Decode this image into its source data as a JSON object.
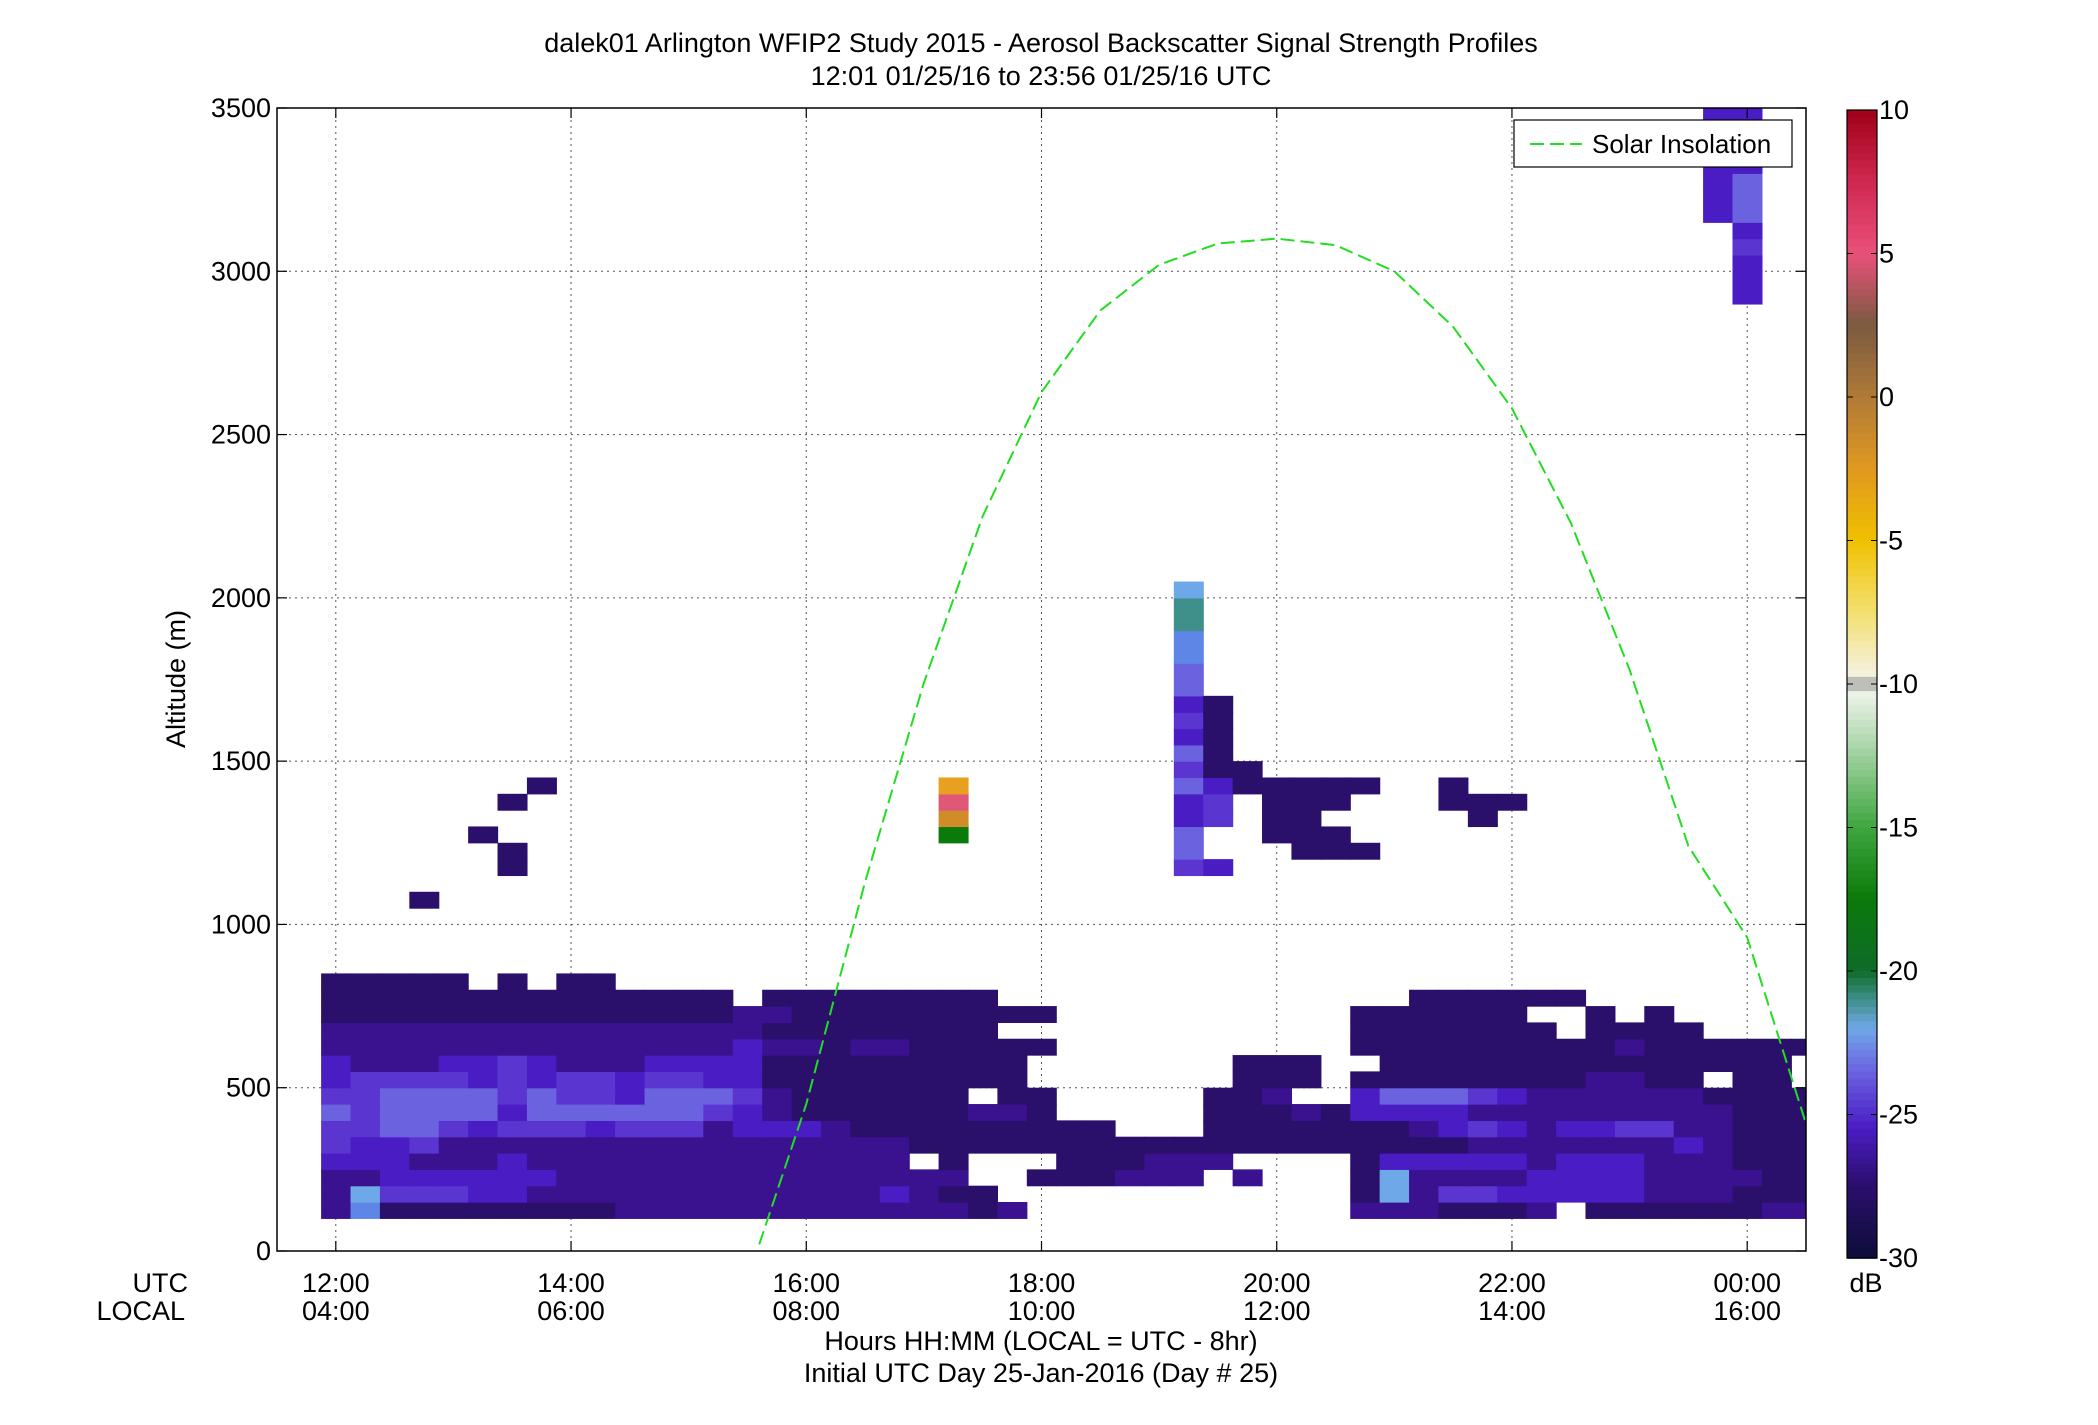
{
  "chart_data": {
    "type": "heatmap",
    "title": "dalek01 Arlington WFIP2 Study 2015 - Aerosol Backscatter Signal Strength Profiles",
    "subtitle": "12:01 01/25/16 to 23:56 01/25/16  UTC",
    "ylabel": "Altitude (m)",
    "xlabel": "Hours HH:MM  (LOCAL = UTC - 8hr)",
    "xlabel2": "Initial UTC Day 25-Jan-2016 (Day # 25)",
    "x_row_labels": [
      "UTC",
      "LOCAL"
    ],
    "x_ticks_utc": [
      "12:00",
      "14:00",
      "16:00",
      "18:00",
      "20:00",
      "22:00",
      "00:00"
    ],
    "x_ticks_local": [
      "04:00",
      "06:00",
      "08:00",
      "10:00",
      "12:00",
      "14:00",
      "16:00"
    ],
    "x_tick_hours": [
      12,
      14,
      16,
      18,
      20,
      22,
      24
    ],
    "xlim": [
      11.5,
      24.5
    ],
    "ylim": [
      0,
      3500
    ],
    "y_ticks": [
      0,
      500,
      1000,
      1500,
      2000,
      2500,
      3000,
      3500
    ],
    "grid": true,
    "colorbar": {
      "range": [
        -30,
        10
      ],
      "ticks": [
        10,
        5,
        0,
        -5,
        -10,
        -15,
        -20,
        -25,
        -30
      ],
      "unit": "dB",
      "stops": [
        {
          "v": -30,
          "c": "#0d0d3a"
        },
        {
          "v": -27.5,
          "c": "#2a0f6b"
        },
        {
          "v": -25.5,
          "c": "#4a1cc4"
        },
        {
          "v": -23.5,
          "c": "#6b62e0"
        },
        {
          "v": -22,
          "c": "#6fa8e8"
        },
        {
          "v": -21,
          "c": "#3f8f8a"
        },
        {
          "v": -20,
          "c": "#0f6b2a"
        },
        {
          "v": -17.5,
          "c": "#0a7a0a"
        },
        {
          "v": -15,
          "c": "#3fa63f"
        },
        {
          "v": -12.5,
          "c": "#9ed09e"
        },
        {
          "v": -10.3,
          "c": "#eef4ea"
        },
        {
          "v": -10,
          "c": "#9a9a9a"
        },
        {
          "v": -9.7,
          "c": "#f4f2e0"
        },
        {
          "v": -7.5,
          "c": "#f3e070"
        },
        {
          "v": -5,
          "c": "#f0c000"
        },
        {
          "v": -2.5,
          "c": "#e09820"
        },
        {
          "v": 0,
          "c": "#b07a38"
        },
        {
          "v": 2.5,
          "c": "#7a5a40"
        },
        {
          "v": 5,
          "c": "#e8507a"
        },
        {
          "v": 7.5,
          "c": "#d02850"
        },
        {
          "v": 10,
          "c": "#a00018"
        }
      ]
    },
    "palette": {
      "A": "#2a0f6b",
      "B": "#3a128f",
      "C": "#4a1cc4",
      "D": "#5a35d0",
      "E": "#6b62e0",
      "F": "#6fa8e8",
      "G": "#3f8f8a",
      "H": "#0a7a0a",
      "I": "#d08c28",
      "J": "#e05878",
      "K": "#e8a020",
      "L": "#5e86e6"
    },
    "time_bin_minutes": 15,
    "alt_bin_meters": 50,
    "grid_start_hour": 12,
    "grid_start_alt": 100,
    "backscatter_rows": [
      "BLAAAAAAAABBBBBBBBBBBBAB...........BBBAAAB.AAAAAABBBBBBCCCBBBBBBBBAAABB",
      "BFDDDCCBBBBBBBBBBBBCBAA............AFBDDCCCCCBBBAAAABBBBBBBAAAACBBDEEDC",
      "BBCCCCCCBBBBBBBBBBBBBB..AAABBB.B...AFBBBBCCCCBBBBAAAAAAAAABAAAACBBBBBCC",
      "CCCBBBCBBBBBBBBBBBBB.A...AAABBB....ACCCCCBCCCBBBAAAAAABAAAAAACCCCCBAAAA",
      "DCCDBBBBBBBBBBBBBBBBAAAAAAAAAAAAAAAAAAABBBBBBBCBAAAAAAAAAAAAAAACBBBBBCC",
      "DDEEDCDDDCDDDBCCCBAAAAAAAAA...AAAAAAABCDCBCCDDBBAAAAAAAAAAAAAABBBB.AAAA",
      "EDEEEECEEEEEEDCBAAAAAABBA.....AAABACCCCBBBBBBBBBAAAABA...AAAAAAC.AAB....",
      "DDEEEEDEDDCEEEDBAAAAAA.AA.....AAB..CEEEDCBBBBBBAAAAAAAAA....AAAAC.AB.A..",
      "CDDDDCDCDDCDDCCAAAAAAAAA.......AAA.AAAAAAAABBAA.AA.AAAA........AC.BB....",
      "CBBBCCDCBBBCCCCAAAAAAAAA.......AAA..AAAAAAAAAAAAAA.AAAA........AAAA.....",
      "BBBBBBBBBBBBBBCBBABBAAAAA..........AAAAAAAAABAAAAAAAA...........A.......",
      "BBBBBBBBBBBBBBBAAAAAAAA............AAAAAAA.AAAA....................A....",
      "AAAAAAAAAAAAAABBAAAAAAAAA..........AAAAAA..A.A.....................A....",
      "AAAAAAAAAAAAAA.AAAAAAAA..............AAAAAA......................AA....",
      "AAAAA.A.AA.........................................................A...",
      "................................................................AA....."
    ],
    "upper_cells": [
      {
        "hour": 12.75,
        "alt": 1050,
        "c": "A"
      },
      {
        "hour": 13.5,
        "alt": 1150,
        "c": "A"
      },
      {
        "hour": 13.5,
        "alt": 1200,
        "c": "A"
      },
      {
        "hour": 13.25,
        "alt": 1250,
        "c": "A"
      },
      {
        "hour": 13.5,
        "alt": 1350,
        "c": "A"
      },
      {
        "hour": 13.75,
        "alt": 1400,
        "c": "A"
      },
      {
        "hour": 17.25,
        "alt": 1250,
        "c": "H"
      },
      {
        "hour": 17.25,
        "alt": 1300,
        "c": "I"
      },
      {
        "hour": 17.25,
        "alt": 1350,
        "c": "J"
      },
      {
        "hour": 17.25,
        "alt": 1400,
        "c": "K"
      },
      {
        "hour": 19.25,
        "alt": 1150,
        "c": "D"
      },
      {
        "hour": 19.25,
        "alt": 1200,
        "c": "E"
      },
      {
        "hour": 19.25,
        "alt": 1250,
        "c": "E"
      },
      {
        "hour": 19.25,
        "alt": 1300,
        "c": "C"
      },
      {
        "hour": 19.25,
        "alt": 1350,
        "c": "C"
      },
      {
        "hour": 19.25,
        "alt": 1400,
        "c": "E"
      },
      {
        "hour": 19.25,
        "alt": 1450,
        "c": "D"
      },
      {
        "hour": 19.25,
        "alt": 1500,
        "c": "E"
      },
      {
        "hour": 19.25,
        "alt": 1550,
        "c": "C"
      },
      {
        "hour": 19.25,
        "alt": 1600,
        "c": "D"
      },
      {
        "hour": 19.25,
        "alt": 1650,
        "c": "C"
      },
      {
        "hour": 19.25,
        "alt": 1700,
        "c": "E"
      },
      {
        "hour": 19.25,
        "alt": 1750,
        "c": "E"
      },
      {
        "hour": 19.25,
        "alt": 1800,
        "c": "L"
      },
      {
        "hour": 19.25,
        "alt": 1850,
        "c": "L"
      },
      {
        "hour": 19.25,
        "alt": 1900,
        "c": "G"
      },
      {
        "hour": 19.25,
        "alt": 1950,
        "c": "G"
      },
      {
        "hour": 19.25,
        "alt": 2000,
        "c": "F"
      },
      {
        "hour": 19.5,
        "alt": 1150,
        "c": "C"
      },
      {
        "hour": 19.5,
        "alt": 1300,
        "c": "D"
      },
      {
        "hour": 19.5,
        "alt": 1350,
        "c": "D"
      },
      {
        "hour": 19.5,
        "alt": 1400,
        "c": "C"
      },
      {
        "hour": 19.5,
        "alt": 1450,
        "c": "A"
      },
      {
        "hour": 19.5,
        "alt": 1500,
        "c": "A"
      },
      {
        "hour": 19.5,
        "alt": 1550,
        "c": "A"
      },
      {
        "hour": 19.5,
        "alt": 1600,
        "c": "A"
      },
      {
        "hour": 19.5,
        "alt": 1650,
        "c": "A"
      },
      {
        "hour": 19.75,
        "alt": 1400,
        "c": "A"
      },
      {
        "hour": 19.75,
        "alt": 1450,
        "c": "A"
      },
      {
        "hour": 20.0,
        "alt": 1250,
        "c": "A"
      },
      {
        "hour": 20.0,
        "alt": 1300,
        "c": "A"
      },
      {
        "hour": 20.0,
        "alt": 1350,
        "c": "A"
      },
      {
        "hour": 20.0,
        "alt": 1400,
        "c": "A"
      },
      {
        "hour": 20.25,
        "alt": 1200,
        "c": "A"
      },
      {
        "hour": 20.25,
        "alt": 1250,
        "c": "A"
      },
      {
        "hour": 20.25,
        "alt": 1300,
        "c": "A"
      },
      {
        "hour": 20.25,
        "alt": 1350,
        "c": "A"
      },
      {
        "hour": 20.25,
        "alt": 1400,
        "c": "A"
      },
      {
        "hour": 20.5,
        "alt": 1200,
        "c": "A"
      },
      {
        "hour": 20.5,
        "alt": 1250,
        "c": "A"
      },
      {
        "hour": 20.5,
        "alt": 1350,
        "c": "A"
      },
      {
        "hour": 20.5,
        "alt": 1400,
        "c": "A"
      },
      {
        "hour": 20.75,
        "alt": 1200,
        "c": "A"
      },
      {
        "hour": 20.75,
        "alt": 1400,
        "c": "A"
      },
      {
        "hour": 21.5,
        "alt": 1350,
        "c": "A"
      },
      {
        "hour": 21.5,
        "alt": 1400,
        "c": "A"
      },
      {
        "hour": 21.75,
        "alt": 1300,
        "c": "A"
      },
      {
        "hour": 21.75,
        "alt": 1350,
        "c": "A"
      },
      {
        "hour": 22.0,
        "alt": 1350,
        "c": "A"
      },
      {
        "hour": 23.75,
        "alt": 3150,
        "c": "C"
      },
      {
        "hour": 23.75,
        "alt": 3200,
        "c": "C"
      },
      {
        "hour": 23.75,
        "alt": 3250,
        "c": "C"
      },
      {
        "hour": 23.75,
        "alt": 3300,
        "c": "C"
      },
      {
        "hour": 23.75,
        "alt": 3350,
        "c": "C"
      },
      {
        "hour": 23.75,
        "alt": 3400,
        "c": "C"
      },
      {
        "hour": 23.75,
        "alt": 3450,
        "c": "C"
      },
      {
        "hour": 24.0,
        "alt": 2900,
        "c": "C"
      },
      {
        "hour": 24.0,
        "alt": 2950,
        "c": "C"
      },
      {
        "hour": 24.0,
        "alt": 3000,
        "c": "C"
      },
      {
        "hour": 24.0,
        "alt": 3050,
        "c": "D"
      },
      {
        "hour": 24.0,
        "alt": 3100,
        "c": "C"
      },
      {
        "hour": 24.0,
        "alt": 3150,
        "c": "E"
      },
      {
        "hour": 24.0,
        "alt": 3200,
        "c": "E"
      },
      {
        "hour": 24.0,
        "alt": 3250,
        "c": "E"
      },
      {
        "hour": 24.0,
        "alt": 3300,
        "c": "C"
      },
      {
        "hour": 24.0,
        "alt": 3350,
        "c": "C"
      },
      {
        "hour": 24.0,
        "alt": 3400,
        "c": "C"
      },
      {
        "hour": 24.0,
        "alt": 3450,
        "c": "C"
      }
    ],
    "solar_insolation": {
      "name": "Solar Insolation",
      "color": "#22dd22",
      "points": [
        [
          15.6,
          20
        ],
        [
          16.0,
          450
        ],
        [
          16.5,
          1130
        ],
        [
          17.0,
          1740
        ],
        [
          17.5,
          2250
        ],
        [
          18.0,
          2630
        ],
        [
          18.5,
          2880
        ],
        [
          19.0,
          3020
        ],
        [
          19.5,
          3085
        ],
        [
          20.0,
          3100
        ],
        [
          20.5,
          3080
        ],
        [
          21.0,
          3000
        ],
        [
          21.5,
          2830
        ],
        [
          22.0,
          2580
        ],
        [
          22.5,
          2230
        ],
        [
          23.0,
          1780
        ],
        [
          23.5,
          1240
        ],
        [
          24.0,
          960
        ],
        [
          24.5,
          390
        ]
      ]
    },
    "legend": {
      "entries": [
        "Solar Insolation"
      ],
      "position": "top-right"
    }
  }
}
